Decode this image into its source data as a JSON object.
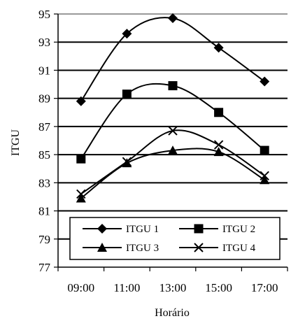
{
  "chart_data": {
    "type": "line",
    "title": "",
    "xlabel": "Horário",
    "ylabel": "ITGU",
    "categories": [
      "09:00",
      "11:00",
      "13:00",
      "15:00",
      "17:00"
    ],
    "ylim": [
      77,
      95
    ],
    "yticks": [
      "77",
      "79",
      "81",
      "83",
      "85",
      "87",
      "89",
      "91",
      "93",
      "95"
    ],
    "grid": true,
    "smooth": true,
    "legend_position": "bottom-inside",
    "series": [
      {
        "name": "ITGU 1",
        "marker": "diamond",
        "values": [
          88.8,
          93.6,
          94.7,
          92.6,
          90.2
        ]
      },
      {
        "name": "ITGU 2",
        "marker": "square",
        "values": [
          84.7,
          89.3,
          89.9,
          88.0,
          85.3
        ]
      },
      {
        "name": "ITGU 3",
        "marker": "triangle",
        "values": [
          81.9,
          84.4,
          85.3,
          85.2,
          83.2
        ]
      },
      {
        "name": "ITGU 4",
        "marker": "x",
        "values": [
          82.2,
          84.5,
          86.7,
          85.7,
          83.5
        ]
      }
    ]
  }
}
